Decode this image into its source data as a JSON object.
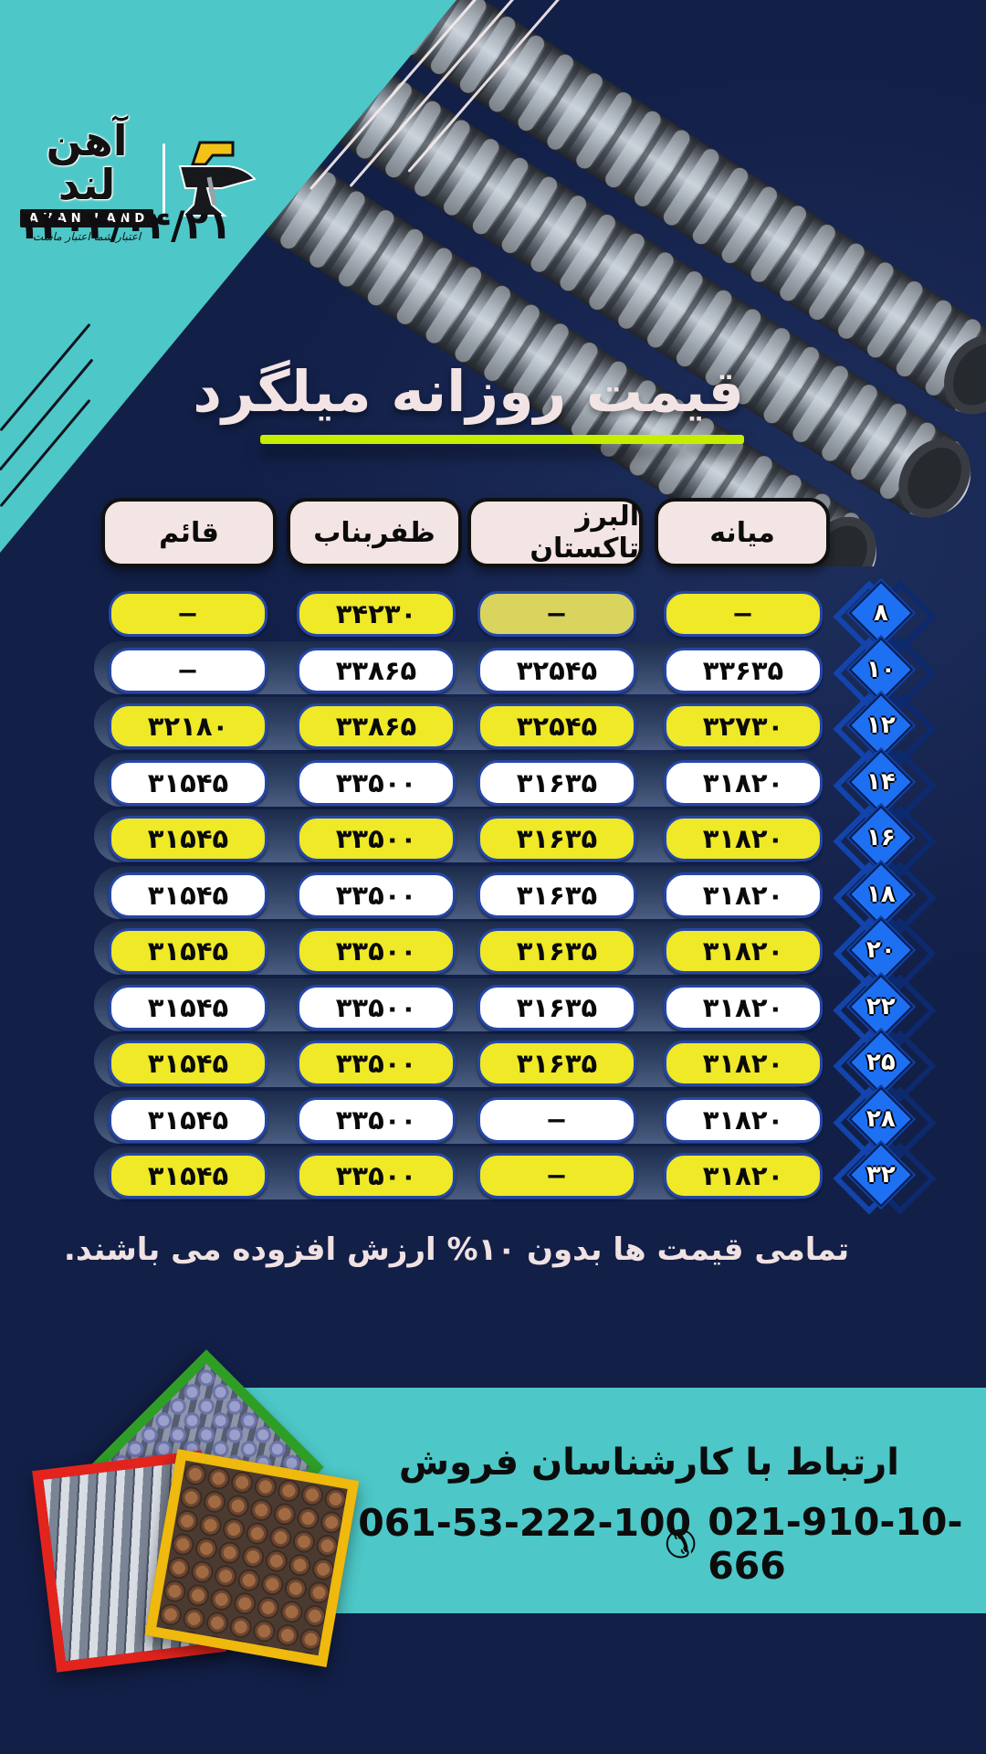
{
  "brand": {
    "name_fa": "آهن لند",
    "name_en": "AHAN LAND",
    "tagline": "اعتبار شما اعتبار ماست"
  },
  "date": "۱۴۰۴/۰۴/۲۱",
  "title": "قیمت روزانه میلگرد",
  "note": "تمامی قیمت ها بدون ۱۰% ارزش افزوده می باشند.",
  "footer": {
    "heading": "ارتباط با کارشناسان فروش",
    "phone_icon": "✆",
    "phones": [
      "061-53-222-100",
      "021-910-10-666"
    ]
  },
  "colors": {
    "teal": "#4dc7c7",
    "navy": "#121f47",
    "pill_yellow": "#efe927",
    "pill_yellow_dull": "#d9d45e",
    "pill_border_blue": "#2546a8",
    "title_underline": "#c6ee00",
    "diamond_blue": "#1e70f3",
    "header_pill_bg": "#f3e5e3",
    "frame_green": "#2f9e27",
    "frame_red": "#e3241d",
    "frame_yellow": "#efb90e"
  },
  "table": {
    "columns": [
      "قائم",
      "ظفربناب",
      "البرز تاکستان",
      "میانه"
    ],
    "rows": [
      {
        "size": "۸",
        "variant": "yellow",
        "alborz_dull": true,
        "cells": {
          "qaem": "−",
          "zafar": "۳۴۲۳۰",
          "alborz": "−",
          "miyaneh": "−"
        }
      },
      {
        "size": "۱۰",
        "variant": "white",
        "cells": {
          "qaem": "−",
          "zafar": "۳۳۸۶۵",
          "alborz": "۳۲۵۴۵",
          "miyaneh": "۳۳۶۳۵"
        }
      },
      {
        "size": "۱۲",
        "variant": "yellow",
        "cells": {
          "qaem": "۳۲۱۸۰",
          "zafar": "۳۳۸۶۵",
          "alborz": "۳۲۵۴۵",
          "miyaneh": "۳۲۷۳۰"
        }
      },
      {
        "size": "۱۴",
        "variant": "white",
        "cells": {
          "qaem": "۳۱۵۴۵",
          "zafar": "۳۳۵۰۰",
          "alborz": "۳۱۶۳۵",
          "miyaneh": "۳۱۸۲۰"
        }
      },
      {
        "size": "۱۶",
        "variant": "yellow",
        "cells": {
          "qaem": "۳۱۵۴۵",
          "zafar": "۳۳۵۰۰",
          "alborz": "۳۱۶۳۵",
          "miyaneh": "۳۱۸۲۰"
        }
      },
      {
        "size": "۱۸",
        "variant": "white",
        "cells": {
          "qaem": "۳۱۵۴۵",
          "zafar": "۳۳۵۰۰",
          "alborz": "۳۱۶۳۵",
          "miyaneh": "۳۱۸۲۰"
        }
      },
      {
        "size": "۲۰",
        "variant": "yellow",
        "cells": {
          "qaem": "۳۱۵۴۵",
          "zafar": "۳۳۵۰۰",
          "alborz": "۳۱۶۳۵",
          "miyaneh": "۳۱۸۲۰"
        }
      },
      {
        "size": "۲۲",
        "variant": "white",
        "cells": {
          "qaem": "۳۱۵۴۵",
          "zafar": "۳۳۵۰۰",
          "alborz": "۳۱۶۳۵",
          "miyaneh": "۳۱۸۲۰"
        }
      },
      {
        "size": "۲۵",
        "variant": "yellow",
        "cells": {
          "qaem": "۳۱۵۴۵",
          "zafar": "۳۳۵۰۰",
          "alborz": "۳۱۶۳۵",
          "miyaneh": "۳۱۸۲۰"
        }
      },
      {
        "size": "۲۸",
        "variant": "white",
        "cells": {
          "qaem": "۳۱۵۴۵",
          "zafar": "۳۳۵۰۰",
          "alborz": "−",
          "miyaneh": "۳۱۸۲۰"
        }
      },
      {
        "size": "۳۲",
        "variant": "yellow",
        "cells": {
          "qaem": "۳۱۵۴۵",
          "zafar": "۳۳۵۰۰",
          "alborz": "−",
          "miyaneh": "۳۱۸۲۰"
        }
      }
    ]
  }
}
